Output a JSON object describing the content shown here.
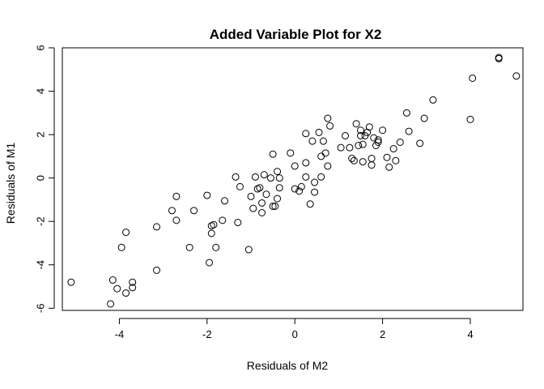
{
  "chart_data": {
    "type": "scatter",
    "title": "Added Variable Plot for X2",
    "xlabel": "Residuals of M2",
    "ylabel": "Residuals of M1",
    "xlim": [
      -5.3,
      5.2
    ],
    "ylim": [
      -6.1,
      6.0
    ],
    "xticks": [
      -4,
      -2,
      0,
      2,
      4
    ],
    "yticks": [
      -6,
      -4,
      -2,
      0,
      2,
      4,
      6
    ],
    "grid": false,
    "legend": "none",
    "point_style": "open-circle",
    "points": [
      [
        -5.1,
        -4.8
      ],
      [
        -4.2,
        -5.8
      ],
      [
        -4.15,
        -4.7
      ],
      [
        -4.05,
        -5.1
      ],
      [
        -3.95,
        -3.2
      ],
      [
        -3.85,
        -5.3
      ],
      [
        -3.85,
        -2.5
      ],
      [
        -3.7,
        -5.05
      ],
      [
        -3.7,
        -4.8
      ],
      [
        -3.15,
        -4.25
      ],
      [
        -3.15,
        -2.25
      ],
      [
        -2.8,
        -1.5
      ],
      [
        -2.7,
        -0.85
      ],
      [
        -2.7,
        -1.95
      ],
      [
        -2.4,
        -3.2
      ],
      [
        -2.3,
        -1.5
      ],
      [
        -2.0,
        -0.8
      ],
      [
        -1.95,
        -3.9
      ],
      [
        -1.9,
        -2.55
      ],
      [
        -1.9,
        -2.2
      ],
      [
        -1.85,
        -2.15
      ],
      [
        -1.8,
        -3.2
      ],
      [
        -1.65,
        -1.95
      ],
      [
        -1.6,
        -1.05
      ],
      [
        -1.35,
        0.05
      ],
      [
        -1.3,
        -2.05
      ],
      [
        -1.25,
        -0.4
      ],
      [
        -1.05,
        -3.3
      ],
      [
        -1.0,
        -0.85
      ],
      [
        -0.95,
        -1.4
      ],
      [
        -0.9,
        0.05
      ],
      [
        -0.85,
        -0.5
      ],
      [
        -0.8,
        -0.45
      ],
      [
        -0.75,
        -1.15
      ],
      [
        -0.75,
        -1.6
      ],
      [
        -0.7,
        0.15
      ],
      [
        -0.65,
        -0.75
      ],
      [
        -0.55,
        0.0
      ],
      [
        -0.5,
        1.1
      ],
      [
        -0.5,
        -1.3
      ],
      [
        -0.45,
        -1.3
      ],
      [
        -0.4,
        0.3
      ],
      [
        -0.4,
        -0.95
      ],
      [
        -0.35,
        -0.45
      ],
      [
        -0.35,
        0.0
      ],
      [
        -0.1,
        1.15
      ],
      [
        0.0,
        0.55
      ],
      [
        0.0,
        -0.5
      ],
      [
        0.1,
        -0.6
      ],
      [
        0.15,
        -0.4
      ],
      [
        0.25,
        0.05
      ],
      [
        0.25,
        0.7
      ],
      [
        0.25,
        2.05
      ],
      [
        0.35,
        -1.2
      ],
      [
        0.4,
        1.7
      ],
      [
        0.45,
        -0.2
      ],
      [
        0.45,
        -0.65
      ],
      [
        0.55,
        2.1
      ],
      [
        0.6,
        1.0
      ],
      [
        0.6,
        0.05
      ],
      [
        0.65,
        1.7
      ],
      [
        0.7,
        1.15
      ],
      [
        0.75,
        0.55
      ],
      [
        0.75,
        2.75
      ],
      [
        0.8,
        2.4
      ],
      [
        1.05,
        1.4
      ],
      [
        1.15,
        1.95
      ],
      [
        1.25,
        1.4
      ],
      [
        1.3,
        0.9
      ],
      [
        1.35,
        0.8
      ],
      [
        1.4,
        2.5
      ],
      [
        1.45,
        1.5
      ],
      [
        1.5,
        2.2
      ],
      [
        1.5,
        1.95
      ],
      [
        1.55,
        0.75
      ],
      [
        1.55,
        1.55
      ],
      [
        1.6,
        1.95
      ],
      [
        1.65,
        2.1
      ],
      [
        1.7,
        2.35
      ],
      [
        1.75,
        0.6
      ],
      [
        1.75,
        0.9
      ],
      [
        1.8,
        1.85
      ],
      [
        1.85,
        1.5
      ],
      [
        1.9,
        1.75
      ],
      [
        1.9,
        1.65
      ],
      [
        2.0,
        2.2
      ],
      [
        2.1,
        0.95
      ],
      [
        2.15,
        0.5
      ],
      [
        2.25,
        1.35
      ],
      [
        2.3,
        0.8
      ],
      [
        2.4,
        1.65
      ],
      [
        2.55,
        3.0
      ],
      [
        2.6,
        2.15
      ],
      [
        2.85,
        1.6
      ],
      [
        2.95,
        2.75
      ],
      [
        3.15,
        3.6
      ],
      [
        4.0,
        2.7
      ],
      [
        4.05,
        4.6
      ],
      [
        4.65,
        5.5
      ],
      [
        4.65,
        5.55
      ],
      [
        5.05,
        4.7
      ]
    ]
  }
}
